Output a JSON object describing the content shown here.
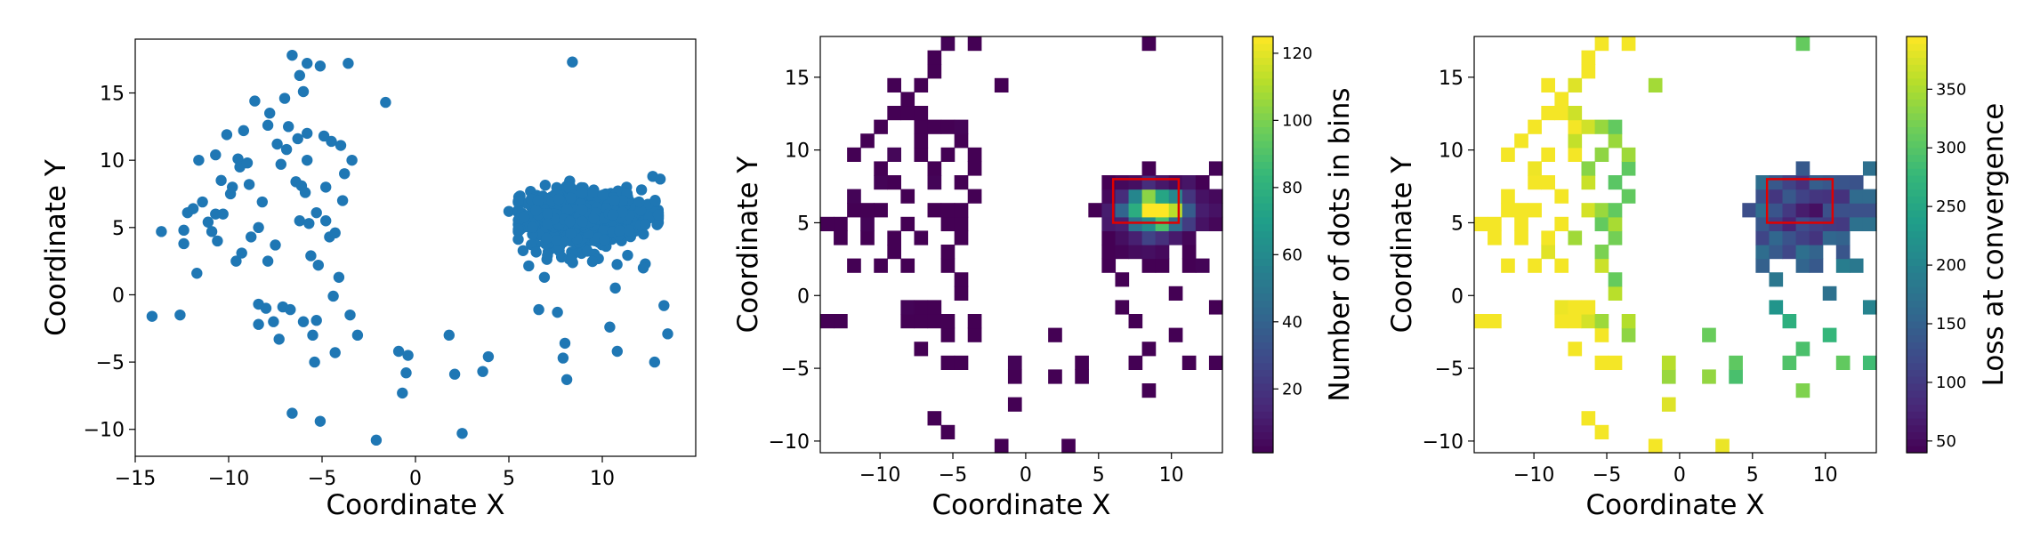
{
  "chart_data": [
    {
      "type": "scatter",
      "xlabel": "Coordinate X",
      "ylabel": "Coordinate Y",
      "xlim": [
        -15,
        15
      ],
      "ylim": [
        -12,
        19
      ],
      "xticks": [
        -15,
        -10,
        -5,
        0,
        5,
        10
      ],
      "yticks": [
        -10,
        -5,
        0,
        5,
        10,
        15
      ],
      "color": "#1f77b4",
      "sparse_points": [
        [
          -14.1,
          -1.6
        ],
        [
          -13.6,
          4.7
        ],
        [
          -12.6,
          -1.5
        ],
        [
          -12.4,
          4.8
        ],
        [
          -12.4,
          3.8
        ],
        [
          -12.2,
          6.1
        ],
        [
          -11.9,
          6.4
        ],
        [
          -11.7,
          1.6
        ],
        [
          -11.6,
          10.0
        ],
        [
          -11.4,
          6.9
        ],
        [
          -11.1,
          5.4
        ],
        [
          -10.9,
          4.7
        ],
        [
          -10.7,
          10.4
        ],
        [
          -10.7,
          6.0
        ],
        [
          -10.6,
          4.0
        ],
        [
          -10.4,
          8.5
        ],
        [
          -10.3,
          6.0
        ],
        [
          -10.1,
          11.9
        ],
        [
          -9.9,
          7.5
        ],
        [
          -9.8,
          8.0
        ],
        [
          -9.6,
          2.5
        ],
        [
          -9.5,
          10.1
        ],
        [
          -9.4,
          9.5
        ],
        [
          -9.3,
          3.1
        ],
        [
          -9.2,
          12.2
        ],
        [
          -9.0,
          9.8
        ],
        [
          -8.9,
          8.2
        ],
        [
          -8.8,
          4.3
        ],
        [
          -8.6,
          14.4
        ],
        [
          -8.4,
          -0.7
        ],
        [
          -8.4,
          5.0
        ],
        [
          -8.4,
          -2.2
        ],
        [
          -8.2,
          6.9
        ],
        [
          -8.0,
          -1.0
        ],
        [
          -7.9,
          2.5
        ],
        [
          -7.9,
          12.6
        ],
        [
          -7.8,
          13.5
        ],
        [
          -7.6,
          -2.0
        ],
        [
          -7.5,
          3.7
        ],
        [
          -7.4,
          11.2
        ],
        [
          -7.3,
          -3.3
        ],
        [
          -7.2,
          9.7
        ],
        [
          -7.1,
          -0.9
        ],
        [
          -7.0,
          14.6
        ],
        [
          -6.9,
          10.8
        ],
        [
          -6.8,
          12.5
        ],
        [
          -6.7,
          -1.1
        ],
        [
          -6.6,
          -8.8
        ],
        [
          -6.6,
          17.8
        ],
        [
          -6.4,
          8.4
        ],
        [
          -6.3,
          11.6
        ],
        [
          -6.2,
          16.3
        ],
        [
          -6.2,
          5.5
        ],
        [
          -6.1,
          8.1
        ],
        [
          -6.0,
          -2.0
        ],
        [
          -6.0,
          15.1
        ],
        [
          -5.9,
          7.6
        ],
        [
          -5.8,
          12.0
        ],
        [
          -5.8,
          10.0
        ],
        [
          -5.8,
          17.2
        ],
        [
          -5.7,
          5.3
        ],
        [
          -5.6,
          2.9
        ],
        [
          -5.5,
          -3.0
        ],
        [
          -5.4,
          -5.0
        ],
        [
          -5.3,
          6.1
        ],
        [
          -5.3,
          -1.9
        ],
        [
          -5.2,
          2.2
        ],
        [
          -5.1,
          17.0
        ],
        [
          -5.1,
          -9.4
        ],
        [
          -4.9,
          11.8
        ],
        [
          -4.8,
          5.5
        ],
        [
          -4.8,
          8.0
        ],
        [
          -4.6,
          4.3
        ],
        [
          -4.5,
          11.4
        ],
        [
          -4.4,
          -0.1
        ],
        [
          -4.3,
          4.6
        ],
        [
          -4.3,
          -4.3
        ],
        [
          -4.1,
          1.3
        ],
        [
          -4.0,
          11.1
        ],
        [
          -3.9,
          7.0
        ],
        [
          -3.8,
          9.0
        ],
        [
          -3.6,
          17.2
        ],
        [
          -3.5,
          -1.5
        ],
        [
          -3.4,
          10.0
        ],
        [
          -3.1,
          -3.0
        ],
        [
          -2.1,
          -10.8
        ],
        [
          -1.6,
          14.3
        ],
        [
          -0.9,
          -4.2
        ],
        [
          -0.7,
          -7.3
        ],
        [
          -0.5,
          -5.8
        ],
        [
          -0.4,
          -4.5
        ],
        [
          1.8,
          -3.0
        ],
        [
          2.1,
          -5.9
        ],
        [
          2.5,
          -10.3
        ],
        [
          3.6,
          -5.7
        ],
        [
          3.9,
          -4.6
        ],
        [
          5.0,
          6.2
        ],
        [
          6.6,
          -1.1
        ],
        [
          6.9,
          1.3
        ],
        [
          7.1,
          3.2
        ],
        [
          7.6,
          -1.3
        ],
        [
          7.9,
          -4.7
        ],
        [
          8.0,
          -3.6
        ],
        [
          8.1,
          -6.3
        ],
        [
          8.4,
          17.3
        ],
        [
          10.4,
          -2.4
        ],
        [
          10.8,
          -4.2
        ],
        [
          11.2,
          5.2
        ],
        [
          11.3,
          8.0
        ],
        [
          12.1,
          7.8
        ],
        [
          12.3,
          2.3
        ],
        [
          12.7,
          8.8
        ],
        [
          12.8,
          -5.0
        ],
        [
          13.1,
          8.6
        ],
        [
          13.3,
          -0.8
        ],
        [
          13.5,
          -2.9
        ]
      ],
      "dense_cluster": {
        "center": [
          8.8,
          6.0
        ],
        "x_range": [
          5.5,
          13.0
        ],
        "y_range": [
          0.5,
          10.0
        ],
        "approx_count": 1400,
        "note": "large overlapping mass of points"
      }
    },
    {
      "type": "heatmap",
      "xlabel": "Coordinate X",
      "ylabel": "Coordinate Y",
      "xlim": [
        -14.1,
        13.5
      ],
      "ylim": [
        -10.8,
        17.8
      ],
      "xticks": [
        -10,
        -5,
        0,
        5,
        10
      ],
      "yticks": [
        -10,
        -5,
        0,
        5,
        10,
        15
      ],
      "bins": 30,
      "colorbar": {
        "label": "Number of dots in bins",
        "range": [
          1,
          125
        ],
        "ticks": [
          20,
          40,
          60,
          80,
          100,
          120
        ]
      },
      "highlight_rect": {
        "x": [
          6.0,
          10.5
        ],
        "y": [
          5.0,
          8.0
        ],
        "color": "#e00000"
      },
      "colormap": [
        "#440154",
        "#482878",
        "#3e4989",
        "#31688e",
        "#26828e",
        "#1f9e89",
        "#35b779",
        "#6ece58",
        "#b5de2b",
        "#fde725"
      ]
    },
    {
      "type": "heatmap",
      "xlabel": "Coordinate X",
      "ylabel": "Coordinate Y",
      "xlim": [
        -14.1,
        13.5
      ],
      "ylim": [
        -10.8,
        17.8
      ],
      "xticks": [
        -10,
        -5,
        0,
        5,
        10
      ],
      "yticks": [
        -10,
        -5,
        0,
        5,
        10,
        15
      ],
      "bins": 30,
      "colorbar": {
        "label": "Loss at convergence",
        "range": [
          40,
          395
        ],
        "ticks": [
          50,
          100,
          150,
          200,
          250,
          300,
          350
        ]
      },
      "highlight_rect": {
        "x": [
          6.0,
          10.5
        ],
        "y": [
          5.0,
          8.0
        ],
        "color": "#e00000"
      },
      "colormap": [
        "#440154",
        "#482878",
        "#3e4989",
        "#31688e",
        "#26828e",
        "#1f9e89",
        "#35b779",
        "#6ece58",
        "#b5de2b",
        "#fde725"
      ]
    }
  ]
}
